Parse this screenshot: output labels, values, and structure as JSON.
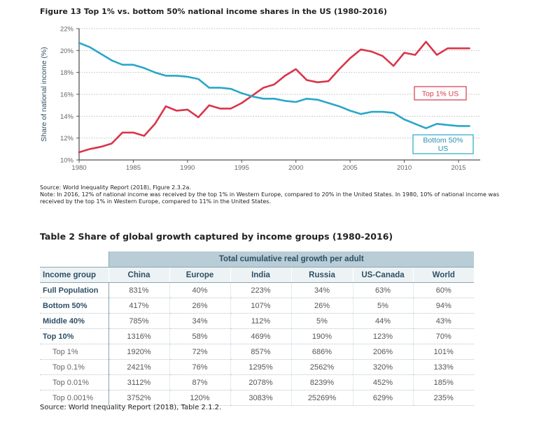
{
  "figure": {
    "title": "Figure 13 Top 1% vs. bottom 50% national income shares in the US (1980-2016)",
    "source": "Source: World Inequality Report (2018), Figure 2.3.2a.",
    "note": "Note: In 2016, 12% of national income was received by the top 1% in Western Europe, compared to 20% in the United States. In 1980, 10% of national income was received by the top 1% in Western Europe, compared to 11% in the United States."
  },
  "chart_data": {
    "type": "line",
    "ylabel": "Share of national income (%)",
    "xlim": [
      1980,
      2017
    ],
    "ylim": [
      10,
      22
    ],
    "x_ticks": [
      "1980",
      "1985",
      "1990",
      "1995",
      "2000",
      "2005",
      "2010",
      "2015"
    ],
    "y_ticks": [
      "10%",
      "12%",
      "14%",
      "16%",
      "18%",
      "20%",
      "22%"
    ],
    "grid": "horizontal dotted",
    "x": [
      1980,
      1981,
      1982,
      1983,
      1984,
      1985,
      1986,
      1987,
      1988,
      1989,
      1990,
      1991,
      1992,
      1993,
      1994,
      1995,
      1996,
      1997,
      1998,
      1999,
      2000,
      2001,
      2002,
      2003,
      2004,
      2005,
      2006,
      2007,
      2008,
      2009,
      2010,
      2011,
      2012,
      2013,
      2014,
      2015,
      2016
    ],
    "series": [
      {
        "name": "Top 1% US",
        "color": "#d9354a",
        "values": [
          10.7,
          11.0,
          11.2,
          11.5,
          12.5,
          12.5,
          12.2,
          13.3,
          14.9,
          14.5,
          14.6,
          13.9,
          15.0,
          14.7,
          14.7,
          15.2,
          15.9,
          16.6,
          16.9,
          17.7,
          18.3,
          17.3,
          17.1,
          17.2,
          18.3,
          19.3,
          20.1,
          19.9,
          19.5,
          18.6,
          19.8,
          19.6,
          20.8,
          19.6,
          20.2,
          20.2,
          20.2
        ]
      },
      {
        "name": "Bottom 50% US",
        "color": "#2aa6c9",
        "values": [
          20.7,
          20.3,
          19.7,
          19.1,
          18.7,
          18.7,
          18.4,
          18.0,
          17.7,
          17.7,
          17.6,
          17.4,
          16.6,
          16.6,
          16.5,
          16.1,
          15.8,
          15.6,
          15.6,
          15.4,
          15.3,
          15.6,
          15.5,
          15.2,
          14.9,
          14.5,
          14.2,
          14.4,
          14.4,
          14.3,
          13.7,
          13.3,
          12.9,
          13.3,
          13.2,
          13.1,
          13.1
        ]
      }
    ],
    "labels": [
      {
        "text": "Top 1% US",
        "series": 0
      },
      {
        "text": "Bottom 50%",
        "text2": "US",
        "series": 1
      }
    ]
  },
  "table": {
    "title": "Table 2 Share of global growth captured by income groups (1980-2016)",
    "super_header": "Total cumulative real growth per adult",
    "columns": [
      "Income group",
      "China",
      "Europe",
      "India",
      "Russia",
      "US-Canada",
      "World"
    ],
    "rows": [
      {
        "group": "Full Population",
        "values": [
          "831%",
          "40%",
          "223%",
          "34%",
          "63%",
          "60%"
        ]
      },
      {
        "group": "Bottom 50%",
        "values": [
          "417%",
          "26%",
          "107%",
          "26%",
          "5%",
          "94%"
        ]
      },
      {
        "group": "Middle 40%",
        "values": [
          "785%",
          "34%",
          "112%",
          "5%",
          "44%",
          "43%"
        ]
      },
      {
        "group": "Top 10%",
        "values": [
          "1316%",
          "58%",
          "469%",
          "190%",
          "123%",
          "70%"
        ]
      },
      {
        "group": "Top 1%",
        "values": [
          "1920%",
          "72%",
          "857%",
          "686%",
          "206%",
          "101%"
        ]
      },
      {
        "group": "Top 0.1%",
        "values": [
          "2421%",
          "76%",
          "1295%",
          "2562%",
          "320%",
          "133%"
        ]
      },
      {
        "group": "Top 0.01%",
        "values": [
          "3112%",
          "87%",
          "2078%",
          "8239%",
          "452%",
          "185%"
        ]
      },
      {
        "group": "Top 0.001%",
        "values": [
          "3752%",
          "120%",
          "3083%",
          "25269%",
          "629%",
          "235%"
        ]
      }
    ],
    "source": "Source: World Inequality Report (2018), Table 2.1.2."
  }
}
